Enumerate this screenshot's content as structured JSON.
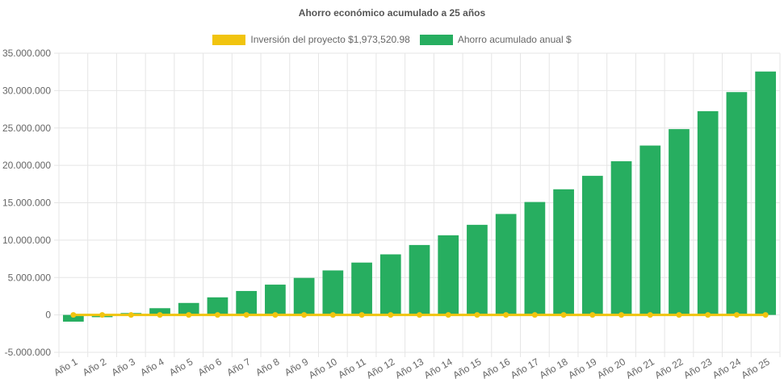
{
  "chart_data": {
    "type": "bar",
    "title": "Ahorro económico acumulado a 25 años",
    "categories": [
      "Año 1",
      "Año 2",
      "Año 3",
      "Año 4",
      "Año 5",
      "Año 6",
      "Año 7",
      "Año 8",
      "Año 9",
      "Año 10",
      "Año 11",
      "Año 12",
      "Año 13",
      "Año 14",
      "Año 15",
      "Año 16",
      "Año 17",
      "Año 18",
      "Año 19",
      "Año 20",
      "Año 21",
      "Año 22",
      "Año 23",
      "Año 24",
      "Año 25"
    ],
    "series": [
      {
        "name": "Inversión del proyecto $1,973,520.98",
        "type": "line",
        "color": "#f1c40f",
        "values": [
          0,
          0,
          0,
          0,
          0,
          0,
          0,
          0,
          0,
          0,
          0,
          0,
          0,
          0,
          0,
          0,
          0,
          0,
          0,
          0,
          0,
          0,
          0,
          0,
          0
        ]
      },
      {
        "name": "Ahorro acumulado anual $",
        "type": "bar",
        "color": "#27ae60",
        "values": [
          -900000,
          -300000,
          250000,
          900000,
          1600000,
          2350000,
          3200000,
          4050000,
          4950000,
          5950000,
          7000000,
          8100000,
          9350000,
          10650000,
          12050000,
          13500000,
          15100000,
          16800000,
          18600000,
          20550000,
          22650000,
          24850000,
          27250000,
          29800000,
          32550000
        ]
      }
    ],
    "ylim": [
      -5000000,
      35000000
    ],
    "yticks": [
      "35.000.000",
      "30.000.000",
      "25.000.000",
      "20.000.000",
      "15.000.000",
      "10.000.000",
      "5.000.000",
      "0",
      "-5.000.000"
    ],
    "ytick_values": [
      35000000,
      30000000,
      25000000,
      20000000,
      15000000,
      10000000,
      5000000,
      0,
      -5000000
    ],
    "grid": true,
    "legend_position": "top"
  }
}
